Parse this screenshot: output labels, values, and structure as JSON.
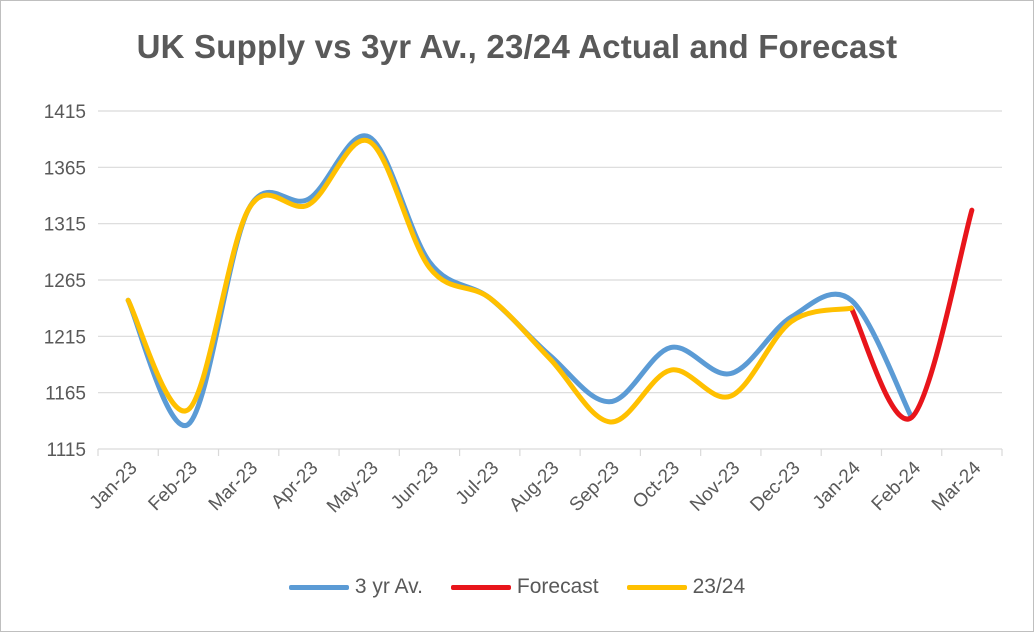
{
  "chart_data": {
    "type": "line",
    "title": "UK Supply vs 3yr Av., 23/24 Actual and Forecast",
    "xlabel": "",
    "ylabel": "",
    "ylim": [
      1115,
      1415
    ],
    "yticks": [
      "1115",
      "1165",
      "1215",
      "1265",
      "1315",
      "1365",
      "1415"
    ],
    "categories": [
      "Jan-23",
      "Feb-23",
      "Mar-23",
      "Apr-23",
      "May-23",
      "Jun-23",
      "Jul-23",
      "Aug-23",
      "Sep-23",
      "Oct-23",
      "Nov-23",
      "Dec-23",
      "Jan-24",
      "Feb-24",
      "Mar-24"
    ],
    "series": [
      {
        "name": "3 yr Av.",
        "color": "#5b9bd5",
        "values": [
          1247,
          1137,
          1328,
          1337,
          1392,
          1281,
          1249,
          1198,
          1157,
          1205,
          1182,
          1232,
          1247,
          1143,
          null
        ]
      },
      {
        "name": "Forecast",
        "color": "#e8151b",
        "values": [
          null,
          null,
          null,
          null,
          null,
          null,
          null,
          null,
          null,
          null,
          null,
          null,
          1240,
          1143,
          1327
        ]
      },
      {
        "name": "23/24",
        "color": "#ffc000",
        "values": [
          1247,
          1150,
          1328,
          1332,
          1388,
          1276,
          1249,
          1195,
          1139,
          1185,
          1162,
          1228,
          1240,
          null,
          null
        ]
      }
    ],
    "legend": "bottom"
  }
}
